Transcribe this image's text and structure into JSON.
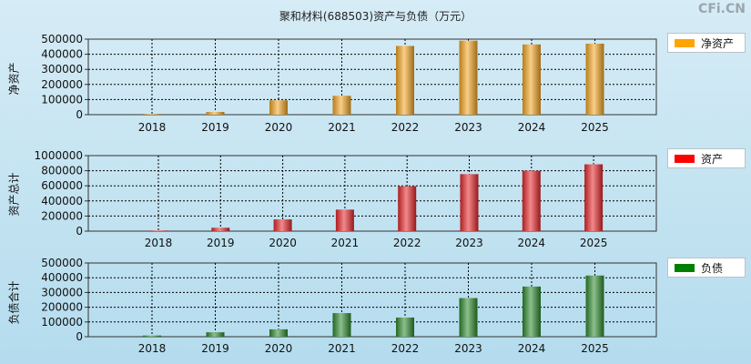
{
  "title": "聚和材料(688503)资产与负债（万元）",
  "watermark": "CFi.CN",
  "chart_data": [
    {
      "type": "bar",
      "id": "equity",
      "ylabel": "净资产",
      "legend": "净资产",
      "color": "#f5a623",
      "categories": [
        "2018",
        "2019",
        "2020",
        "2021",
        "2022",
        "2023",
        "2024",
        "2025"
      ],
      "values": [
        5000,
        18000,
        95000,
        125000,
        455000,
        490000,
        465000,
        470000
      ],
      "ylim": [
        0,
        500000
      ],
      "yticks": [
        "0",
        "100000",
        "200000",
        "300000",
        "400000",
        "500000"
      ]
    },
    {
      "type": "bar",
      "id": "assets",
      "ylabel": "资产总计",
      "legend": "资产",
      "color": "#e8262a",
      "categories": [
        "2018",
        "2019",
        "2020",
        "2021",
        "2022",
        "2023",
        "2024",
        "2025"
      ],
      "values": [
        8000,
        45000,
        155000,
        285000,
        595000,
        755000,
        800000,
        885000
      ],
      "ylim": [
        0,
        1000000
      ],
      "yticks": [
        "0",
        "200000",
        "400000",
        "600000",
        "800000",
        "1000000"
      ]
    },
    {
      "type": "bar",
      "id": "liabilities",
      "ylabel": "负债合计",
      "legend": "负债",
      "color": "#2e8b2e",
      "categories": [
        "2018",
        "2019",
        "2020",
        "2021",
        "2022",
        "2023",
        "2024",
        "2025"
      ],
      "values": [
        8000,
        30000,
        50000,
        160000,
        130000,
        262000,
        340000,
        415000
      ],
      "ylim": [
        0,
        500000
      ],
      "yticks": [
        "0",
        "100000",
        "200000",
        "300000",
        "400000",
        "500000"
      ]
    }
  ]
}
